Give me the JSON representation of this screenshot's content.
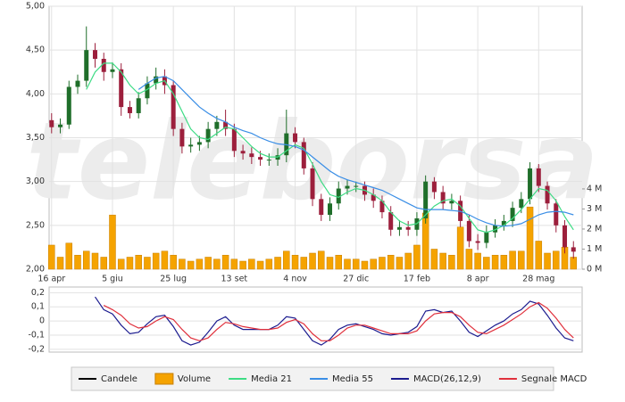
{
  "chart_data": [
    {
      "type": "candlestick",
      "watermark": "teleborsa",
      "x": [
        0,
        7,
        14,
        21,
        28,
        35,
        42,
        49,
        56,
        63,
        70,
        77,
        84,
        91,
        98,
        105,
        112,
        119,
        126,
        133,
        140,
        147,
        154,
        161,
        168,
        175,
        182,
        189,
        196,
        203,
        210,
        217,
        224,
        231,
        238,
        245,
        252,
        259,
        266,
        273,
        280,
        287,
        294,
        301,
        308,
        315,
        322,
        329,
        336,
        343,
        350,
        357,
        364,
        371,
        378,
        385,
        392,
        399,
        406,
        413,
        420
      ],
      "xlim": [
        -2,
        427
      ],
      "xticks": [
        {
          "value": 0,
          "label": "16 apr"
        },
        {
          "value": 49,
          "label": "5 giu"
        },
        {
          "value": 98,
          "label": "25 lug"
        },
        {
          "value": 147,
          "label": "13 set"
        },
        {
          "value": 196,
          "label": "4 nov"
        },
        {
          "value": 245,
          "label": "27 dic"
        },
        {
          "value": 294,
          "label": "17 feb"
        },
        {
          "value": 343,
          "label": "8 apr"
        },
        {
          "value": 392,
          "label": "28 mag"
        }
      ],
      "ylim": [
        2,
        5
      ],
      "yticks": [
        {
          "value": 2,
          "label": "2,00"
        },
        {
          "value": 2.5,
          "label": "2,50"
        },
        {
          "value": 3,
          "label": "3,00"
        },
        {
          "value": 3.5,
          "label": "3,50"
        },
        {
          "value": 4,
          "label": "4,00"
        },
        {
          "value": 4.5,
          "label": "4,50"
        },
        {
          "value": 5,
          "label": "5,00"
        }
      ],
      "y2lim": [
        0,
        13.1
      ],
      "y2ticks": [
        {
          "value": 0,
          "label": "0 M"
        },
        {
          "value": 1,
          "label": "1 M"
        },
        {
          "value": 2,
          "label": "2 M"
        },
        {
          "value": 3,
          "label": "3 M"
        },
        {
          "value": 4,
          "label": "4 M"
        }
      ],
      "grid": true,
      "candles": {
        "name": "Candele",
        "color": "#000000",
        "up_color": "#1f6e2a",
        "down_color": "#9c1f3c",
        "open": [
          3.7,
          3.62,
          3.65,
          4.08,
          4.15,
          4.5,
          4.4,
          4.25,
          4.28,
          3.85,
          3.78,
          3.95,
          4.12,
          4.2,
          4.1,
          3.6,
          3.4,
          3.42,
          3.45,
          3.6,
          3.68,
          3.6,
          3.35,
          3.32,
          3.28,
          3.25,
          3.25,
          3.3,
          3.55,
          3.45,
          3.15,
          2.8,
          2.62,
          2.75,
          2.92,
          2.95,
          2.95,
          2.85,
          2.78,
          2.65,
          2.45,
          2.48,
          2.45,
          2.58,
          3.0,
          2.88,
          2.75,
          2.78,
          2.55,
          2.32,
          2.3,
          2.42,
          2.5,
          2.55,
          2.7,
          2.8,
          3.15,
          2.95,
          2.75,
          2.5,
          2.25
        ],
        "high": [
          3.78,
          3.72,
          4.15,
          4.22,
          4.77,
          4.58,
          4.47,
          4.36,
          4.35,
          3.92,
          4.02,
          4.2,
          4.3,
          4.28,
          4.15,
          3.67,
          3.5,
          3.52,
          3.68,
          3.75,
          3.82,
          3.66,
          3.42,
          3.39,
          3.35,
          3.32,
          3.38,
          3.82,
          3.62,
          3.5,
          3.22,
          2.86,
          2.82,
          3.0,
          3.02,
          3.0,
          3.0,
          2.92,
          2.84,
          2.72,
          2.56,
          2.55,
          2.65,
          3.07,
          3.05,
          2.95,
          2.86,
          2.84,
          2.62,
          2.4,
          2.5,
          2.57,
          2.62,
          2.77,
          2.88,
          3.22,
          3.2,
          3.0,
          2.8,
          2.56,
          2.32
        ],
        "low": [
          3.55,
          3.55,
          3.6,
          4.0,
          4.08,
          4.3,
          4.15,
          4.18,
          3.75,
          3.72,
          3.72,
          3.88,
          4.05,
          4.0,
          3.52,
          3.32,
          3.33,
          3.35,
          3.38,
          3.52,
          3.52,
          3.28,
          3.25,
          3.2,
          3.18,
          3.18,
          3.18,
          3.22,
          3.38,
          3.08,
          2.72,
          2.55,
          2.55,
          2.68,
          2.85,
          2.88,
          2.78,
          2.7,
          2.58,
          2.38,
          2.38,
          2.38,
          2.38,
          2.52,
          2.8,
          2.68,
          2.68,
          2.48,
          2.25,
          2.22,
          2.24,
          2.36,
          2.44,
          2.48,
          2.64,
          2.74,
          2.88,
          2.68,
          2.42,
          2.18,
          2.12
        ],
        "close": [
          3.62,
          3.65,
          4.08,
          4.15,
          4.5,
          4.4,
          4.25,
          4.28,
          3.85,
          3.78,
          3.95,
          4.12,
          4.2,
          4.1,
          3.6,
          3.4,
          3.42,
          3.45,
          3.6,
          3.68,
          3.6,
          3.35,
          3.32,
          3.28,
          3.25,
          3.25,
          3.3,
          3.55,
          3.45,
          3.15,
          2.8,
          2.62,
          2.75,
          2.92,
          2.95,
          2.95,
          2.85,
          2.78,
          2.65,
          2.45,
          2.48,
          2.45,
          2.58,
          3.0,
          2.88,
          2.75,
          2.78,
          2.55,
          2.32,
          2.3,
          2.42,
          2.5,
          2.55,
          2.7,
          2.8,
          3.15,
          2.95,
          2.75,
          2.5,
          2.25,
          2.2
        ]
      },
      "series": [
        {
          "name": "Volume",
          "type": "bar",
          "axis": "y2",
          "color": "#f5a300",
          "values": [
            1.2,
            0.6,
            1.3,
            0.7,
            0.9,
            0.8,
            0.6,
            2.7,
            0.5,
            0.6,
            0.7,
            0.6,
            0.8,
            0.9,
            0.7,
            0.5,
            0.4,
            0.5,
            0.6,
            0.5,
            0.7,
            0.5,
            0.4,
            0.5,
            0.4,
            0.5,
            0.6,
            0.9,
            0.7,
            0.6,
            0.8,
            0.9,
            0.6,
            0.7,
            0.5,
            0.5,
            0.4,
            0.5,
            0.6,
            0.7,
            0.6,
            0.8,
            1.2,
            2.8,
            1.0,
            0.8,
            0.7,
            2.1,
            1.0,
            0.8,
            0.6,
            0.7,
            0.7,
            0.9,
            0.9,
            3.1,
            1.4,
            0.8,
            0.9,
            1.1,
            0.6
          ]
        },
        {
          "name": "Media 21",
          "color": "#3ddc84",
          "values": [
            null,
            null,
            null,
            null,
            4.05,
            4.25,
            4.35,
            4.35,
            4.25,
            4.1,
            4.0,
            4.05,
            4.12,
            4.15,
            4.0,
            3.8,
            3.6,
            3.5,
            3.48,
            3.55,
            3.62,
            3.6,
            3.5,
            3.4,
            3.32,
            3.28,
            3.28,
            3.35,
            3.42,
            3.38,
            3.2,
            3.0,
            2.85,
            2.82,
            2.88,
            2.92,
            2.9,
            2.85,
            2.78,
            2.65,
            2.55,
            2.5,
            2.52,
            2.62,
            2.72,
            2.78,
            2.8,
            2.72,
            2.58,
            2.45,
            2.42,
            2.45,
            2.5,
            2.58,
            2.68,
            2.8,
            2.92,
            2.9,
            2.78,
            2.6,
            2.45
          ]
        },
        {
          "name": "Media 55",
          "color": "#3a8ee6",
          "values": [
            null,
            null,
            null,
            null,
            null,
            null,
            null,
            null,
            null,
            null,
            4.05,
            4.12,
            4.18,
            4.2,
            4.15,
            4.05,
            3.95,
            3.85,
            3.78,
            3.72,
            3.68,
            3.62,
            3.58,
            3.55,
            3.5,
            3.46,
            3.43,
            3.42,
            3.4,
            3.36,
            3.28,
            3.2,
            3.12,
            3.06,
            3.02,
            2.99,
            2.96,
            2.93,
            2.9,
            2.85,
            2.8,
            2.75,
            2.7,
            2.68,
            2.68,
            2.68,
            2.67,
            2.66,
            2.62,
            2.57,
            2.53,
            2.5,
            2.49,
            2.5,
            2.52,
            2.57,
            2.62,
            2.65,
            2.66,
            2.65,
            2.62
          ]
        }
      ]
    },
    {
      "type": "line",
      "x": [
        0,
        7,
        14,
        21,
        28,
        35,
        42,
        49,
        56,
        63,
        70,
        77,
        84,
        91,
        98,
        105,
        112,
        119,
        126,
        133,
        140,
        147,
        154,
        161,
        168,
        175,
        182,
        189,
        196,
        203,
        210,
        217,
        224,
        231,
        238,
        245,
        252,
        259,
        266,
        273,
        280,
        287,
        294,
        301,
        308,
        315,
        322,
        329,
        336,
        343,
        350,
        357,
        364,
        371,
        378,
        385,
        392,
        399,
        406,
        413,
        420
      ],
      "xlim": [
        -2,
        427
      ],
      "ylim": [
        -0.22,
        0.24
      ],
      "yticks": [
        {
          "value": 0.2,
          "label": "0,2"
        },
        {
          "value": 0.1,
          "label": "0,1"
        },
        0,
        {
          "value": -0.1,
          "label": "-0,1"
        },
        {
          "value": -0.2,
          "label": "-0,2"
        }
      ],
      "grid": true,
      "series": [
        {
          "name": "MACD(26,12,9)",
          "color": "#1c1c8f",
          "values": [
            null,
            null,
            null,
            null,
            null,
            0.17,
            0.08,
            0.05,
            -0.03,
            -0.09,
            -0.08,
            -0.02,
            0.03,
            0.04,
            -0.04,
            -0.14,
            -0.17,
            -0.15,
            -0.08,
            0.0,
            0.03,
            -0.03,
            -0.06,
            -0.06,
            -0.06,
            -0.06,
            -0.03,
            0.03,
            0.02,
            -0.06,
            -0.14,
            -0.17,
            -0.13,
            -0.06,
            -0.03,
            -0.02,
            -0.04,
            -0.06,
            -0.09,
            -0.1,
            -0.09,
            -0.08,
            -0.04,
            0.07,
            0.08,
            0.06,
            0.07,
            0.0,
            -0.08,
            -0.11,
            -0.07,
            -0.03,
            0.0,
            0.05,
            0.08,
            0.14,
            0.12,
            0.04,
            -0.05,
            -0.12,
            -0.14
          ]
        },
        {
          "name": "Segnale MACD",
          "color": "#e0303c",
          "values": [
            null,
            null,
            null,
            null,
            null,
            null,
            0.11,
            0.08,
            0.04,
            -0.02,
            -0.05,
            -0.04,
            0.0,
            0.03,
            0.01,
            -0.06,
            -0.12,
            -0.14,
            -0.12,
            -0.06,
            -0.01,
            -0.02,
            -0.04,
            -0.05,
            -0.06,
            -0.06,
            -0.05,
            -0.01,
            0.01,
            -0.02,
            -0.09,
            -0.14,
            -0.14,
            -0.1,
            -0.05,
            -0.03,
            -0.03,
            -0.05,
            -0.07,
            -0.09,
            -0.09,
            -0.09,
            -0.07,
            0.0,
            0.05,
            0.06,
            0.06,
            0.03,
            -0.03,
            -0.08,
            -0.09,
            -0.06,
            -0.03,
            0.01,
            0.05,
            0.1,
            0.13,
            0.09,
            0.02,
            -0.06,
            -0.12
          ]
        }
      ]
    }
  ]
}
